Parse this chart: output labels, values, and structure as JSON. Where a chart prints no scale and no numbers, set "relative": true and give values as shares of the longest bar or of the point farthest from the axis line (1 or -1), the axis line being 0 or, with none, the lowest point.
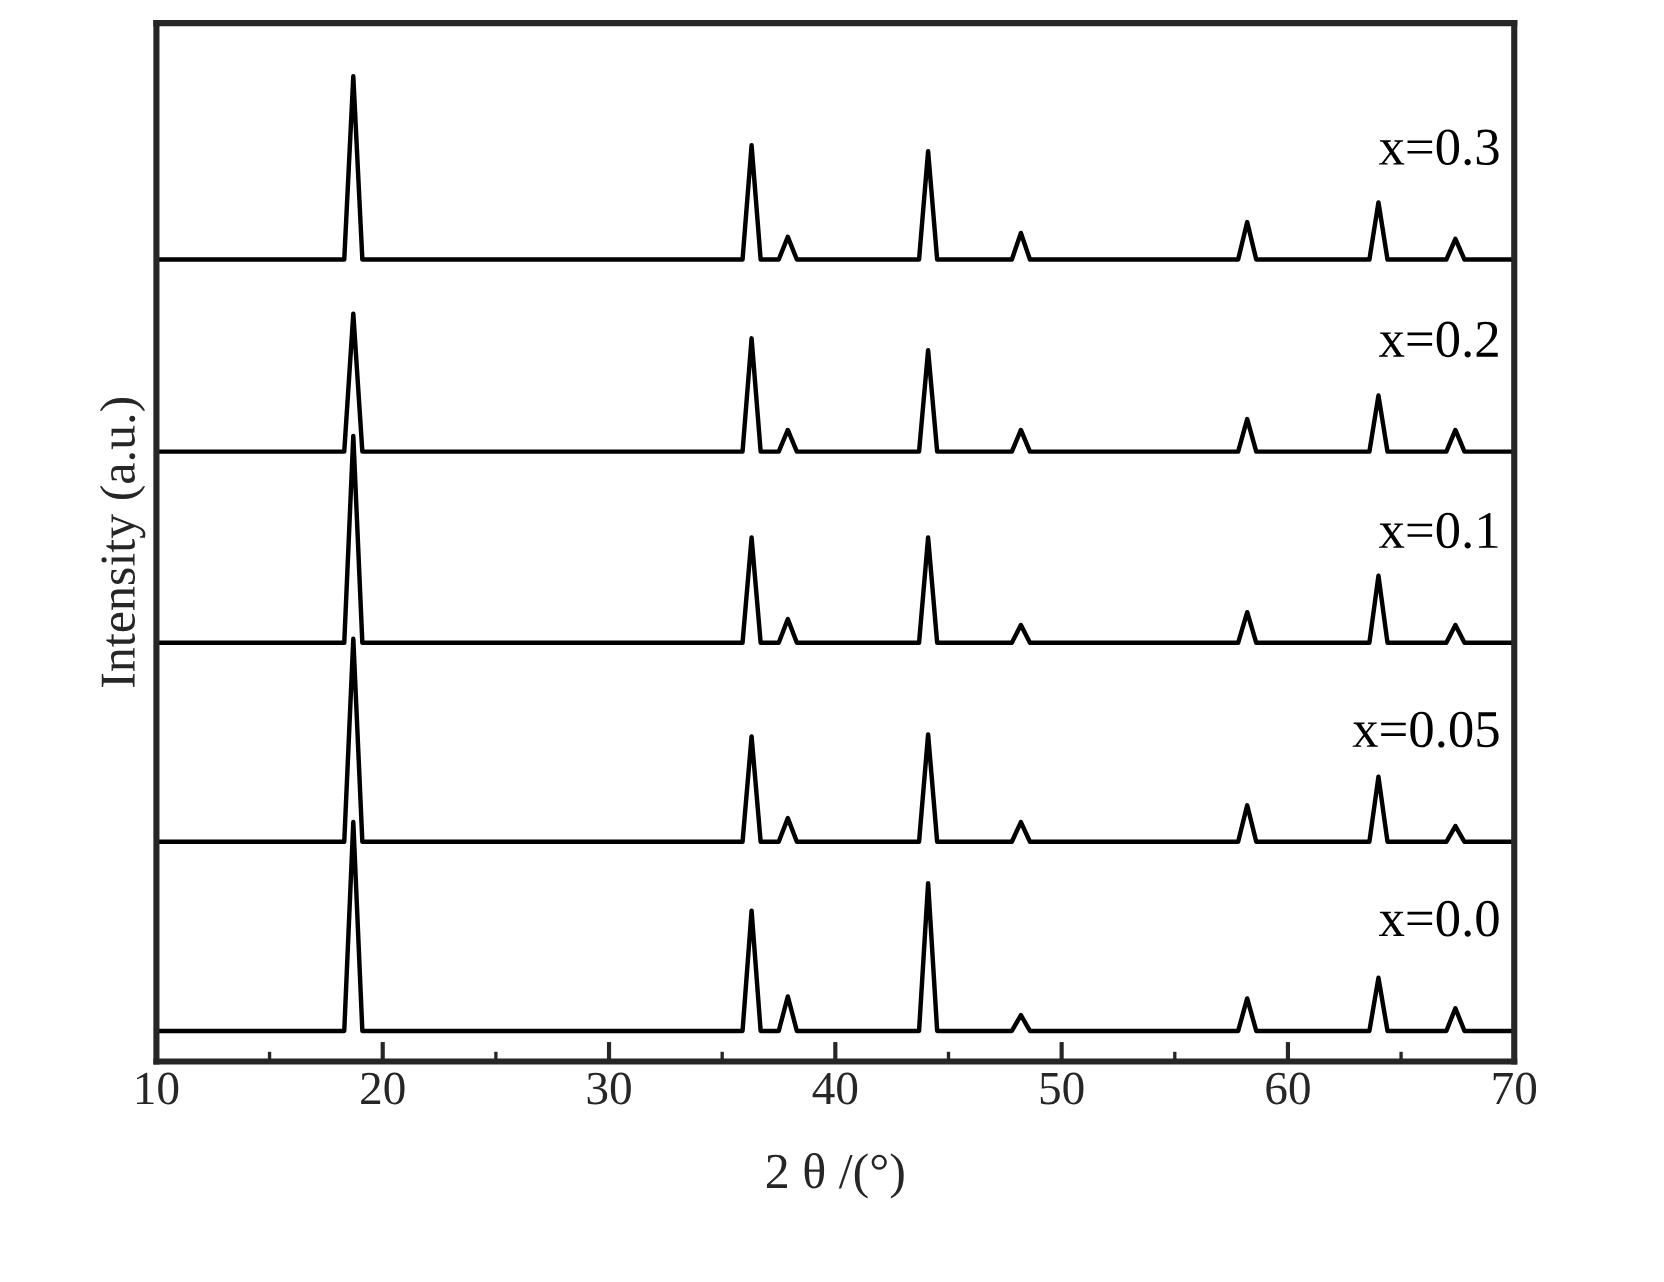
{
  "chart_data": {
    "type": "line",
    "relative": true,
    "xlabel": "2 θ /(°)",
    "ylabel": "Intensity (a.u.)",
    "xlim": [
      10,
      70
    ],
    "xticks": [
      10,
      20,
      30,
      40,
      50,
      60,
      70
    ],
    "tick_labels": "x",
    "grid": false,
    "legend": false,
    "marker": "none",
    "line_style": "solid",
    "x": [
      10,
      18.3,
      18.7,
      19.1,
      35.9,
      36.3,
      36.7,
      37.5,
      37.9,
      38.3,
      43.7,
      44.1,
      44.5,
      47.8,
      48.2,
      48.6,
      57.8,
      58.2,
      58.6,
      63.6,
      64.0,
      64.4,
      67.0,
      67.4,
      67.8,
      70
    ],
    "series": [
      {
        "name": "x=0.0",
        "color": "#000000",
        "values": [
          0.031,
          0.031,
          0.243,
          0.031,
          0.031,
          0.153,
          0.031,
          0.031,
          0.066,
          0.031,
          0.031,
          0.181,
          0.031,
          0.031,
          0.047,
          0.031,
          0.031,
          0.064,
          0.031,
          0.031,
          0.085,
          0.031,
          0.031,
          0.054,
          0.031,
          0.031
        ]
      },
      {
        "name": "x=0.05",
        "color": "#000000",
        "values": [
          0.223,
          0.223,
          0.429,
          0.223,
          0.223,
          0.33,
          0.223,
          0.223,
          0.247,
          0.223,
          0.223,
          0.332,
          0.223,
          0.223,
          0.243,
          0.223,
          0.223,
          0.26,
          0.223,
          0.223,
          0.289,
          0.223,
          0.223,
          0.239,
          0.223,
          0.223
        ]
      },
      {
        "name": "x=0.1",
        "color": "#000000",
        "values": [
          0.425,
          0.425,
          0.635,
          0.425,
          0.425,
          0.532,
          0.425,
          0.425,
          0.449,
          0.425,
          0.425,
          0.532,
          0.425,
          0.425,
          0.443,
          0.425,
          0.425,
          0.456,
          0.425,
          0.425,
          0.493,
          0.425,
          0.425,
          0.443,
          0.425,
          0.425
        ]
      },
      {
        "name": "x=0.2",
        "color": "#000000",
        "values": [
          0.619,
          0.619,
          0.759,
          0.619,
          0.619,
          0.734,
          0.619,
          0.619,
          0.641,
          0.619,
          0.619,
          0.722,
          0.619,
          0.619,
          0.641,
          0.619,
          0.619,
          0.652,
          0.619,
          0.619,
          0.676,
          0.619,
          0.619,
          0.641,
          0.619,
          0.619
        ]
      },
      {
        "name": "x=0.3",
        "color": "#000000",
        "values": [
          0.814,
          0.814,
          1.0,
          0.814,
          0.814,
          0.93,
          0.814,
          0.814,
          0.837,
          0.814,
          0.814,
          0.924,
          0.814,
          0.814,
          0.841,
          0.814,
          0.814,
          0.852,
          0.814,
          0.814,
          0.872,
          0.814,
          0.814,
          0.835,
          0.814,
          0.814
        ]
      }
    ]
  }
}
